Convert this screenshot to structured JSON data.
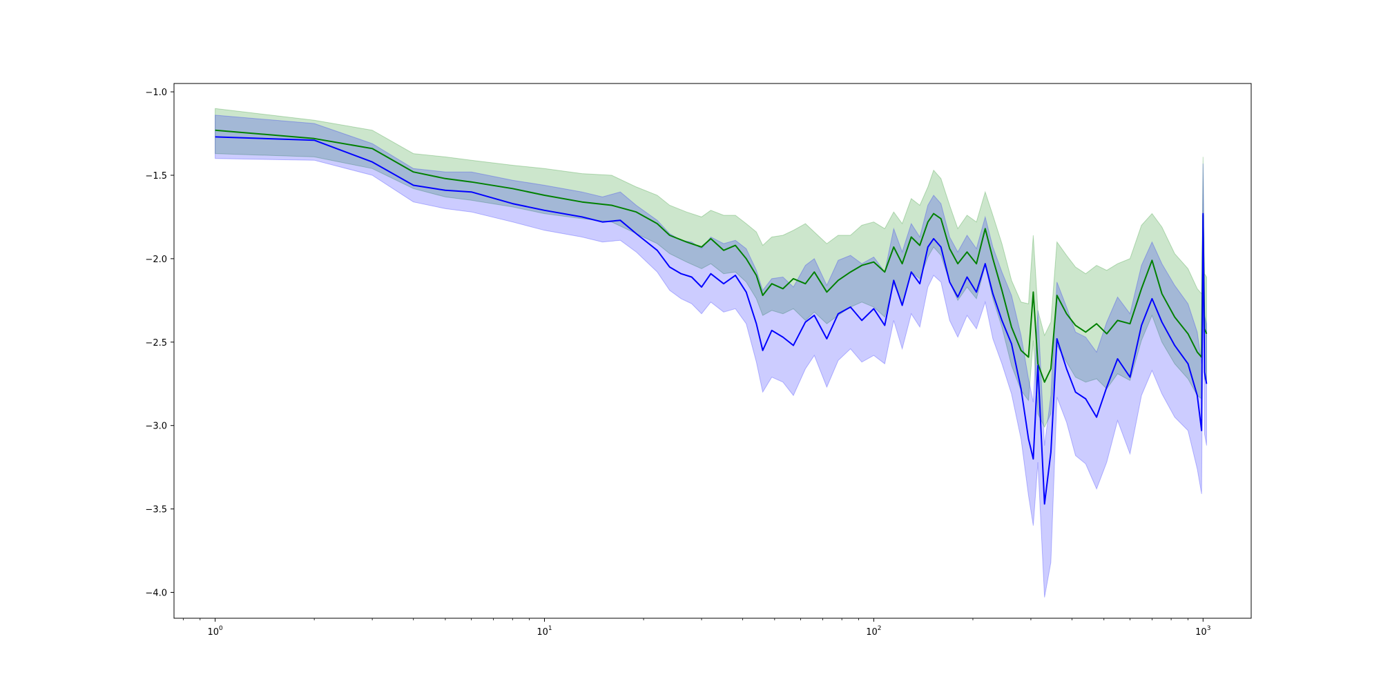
{
  "chart_data": {
    "type": "line",
    "title": "",
    "xlabel": "",
    "ylabel": "",
    "xscale": "log",
    "xlim": [
      0.75,
      1400
    ],
    "ylim": [
      -4.155,
      -0.95
    ],
    "grid": false,
    "legend": "none",
    "yticks": [
      -1.0,
      -1.5,
      -2.0,
      -2.5,
      -3.0,
      -3.5,
      -4.0
    ],
    "ytick_labels": [
      "−1.0",
      "−1.5",
      "−2.0",
      "−2.5",
      "−3.0",
      "−3.5",
      "−4.0"
    ],
    "xticks": [
      1,
      10,
      100,
      1000
    ],
    "xtick_labels": [
      {
        "base": "10",
        "exp": "0"
      },
      {
        "base": "10",
        "exp": "1"
      },
      {
        "base": "10",
        "exp": "2"
      },
      {
        "base": "10",
        "exp": "3"
      }
    ],
    "series": [
      {
        "color": "#008000",
        "band_color": "#008000",
        "band_opacity": 0.2,
        "points": [
          [
            1,
            -1.23,
            -1.1,
            -1.37
          ],
          [
            2,
            -1.28,
            -1.17,
            -1.39
          ],
          [
            3,
            -1.34,
            -1.23,
            -1.46
          ],
          [
            4,
            -1.48,
            -1.37,
            -1.58
          ],
          [
            5,
            -1.52,
            -1.39,
            -1.63
          ],
          [
            6,
            -1.54,
            -1.41,
            -1.65
          ],
          [
            8,
            -1.58,
            -1.44,
            -1.69
          ],
          [
            10,
            -1.62,
            -1.46,
            -1.73
          ],
          [
            13,
            -1.66,
            -1.49,
            -1.76
          ],
          [
            16,
            -1.68,
            -1.5,
            -1.78
          ],
          [
            19,
            -1.72,
            -1.57,
            -1.85
          ],
          [
            22,
            -1.79,
            -1.62,
            -1.91
          ],
          [
            24,
            -1.86,
            -1.68,
            -1.97
          ],
          [
            27,
            -1.9,
            -1.72,
            -2.02
          ],
          [
            30,
            -1.93,
            -1.75,
            -2.06
          ],
          [
            32,
            -1.88,
            -1.71,
            -2.03
          ],
          [
            35,
            -1.95,
            -1.74,
            -2.09
          ],
          [
            38,
            -1.92,
            -1.74,
            -2.08
          ],
          [
            41,
            -2.0,
            -1.79,
            -2.14
          ],
          [
            44,
            -2.1,
            -1.84,
            -2.24
          ],
          [
            46,
            -2.22,
            -1.92,
            -2.34
          ],
          [
            49,
            -2.15,
            -1.87,
            -2.31
          ],
          [
            53,
            -2.18,
            -1.86,
            -2.33
          ],
          [
            57,
            -2.12,
            -1.83,
            -2.3
          ],
          [
            62,
            -2.15,
            -1.79,
            -2.37
          ],
          [
            66,
            -2.08,
            -1.84,
            -2.32
          ],
          [
            72,
            -2.2,
            -1.91,
            -2.39
          ],
          [
            78,
            -2.13,
            -1.86,
            -2.34
          ],
          [
            85,
            -2.08,
            -1.86,
            -2.29
          ],
          [
            92,
            -2.04,
            -1.8,
            -2.26
          ],
          [
            100,
            -2.02,
            -1.78,
            -2.29
          ],
          [
            108,
            -2.08,
            -1.82,
            -2.35
          ],
          [
            115,
            -1.93,
            -1.72,
            -2.15
          ],
          [
            122,
            -2.03,
            -1.79,
            -2.27
          ],
          [
            130,
            -1.87,
            -1.64,
            -2.08
          ],
          [
            138,
            -1.92,
            -1.68,
            -2.12
          ],
          [
            146,
            -1.78,
            -1.57,
            -1.99
          ],
          [
            152,
            -1.73,
            -1.47,
            -1.93
          ],
          [
            160,
            -1.76,
            -1.52,
            -1.98
          ],
          [
            170,
            -1.94,
            -1.68,
            -2.14
          ],
          [
            180,
            -2.03,
            -1.82,
            -2.25
          ],
          [
            192,
            -1.96,
            -1.74,
            -2.17
          ],
          [
            205,
            -2.03,
            -1.78,
            -2.24
          ],
          [
            218,
            -1.82,
            -1.6,
            -2.04
          ],
          [
            230,
            -2.0,
            -1.74,
            -2.24
          ],
          [
            245,
            -2.19,
            -1.91,
            -2.41
          ],
          [
            262,
            -2.41,
            -2.13,
            -2.64
          ],
          [
            280,
            -2.55,
            -2.26,
            -2.79
          ],
          [
            295,
            -2.59,
            -2.27,
            -2.85
          ],
          [
            305,
            -2.2,
            -1.86,
            -2.49
          ],
          [
            315,
            -2.63,
            -2.31,
            -2.93
          ],
          [
            330,
            -2.74,
            -2.46,
            -3.01
          ],
          [
            345,
            -2.66,
            -2.38,
            -2.93
          ],
          [
            360,
            -2.22,
            -1.9,
            -2.52
          ],
          [
            385,
            -2.33,
            -1.98,
            -2.62
          ],
          [
            410,
            -2.4,
            -2.05,
            -2.71
          ],
          [
            440,
            -2.44,
            -2.09,
            -2.74
          ],
          [
            475,
            -2.39,
            -2.04,
            -2.72
          ],
          [
            510,
            -2.45,
            -2.07,
            -2.78
          ],
          [
            550,
            -2.37,
            -2.03,
            -2.69
          ],
          [
            600,
            -2.39,
            -2.0,
            -2.73
          ],
          [
            650,
            -2.18,
            -1.8,
            -2.49
          ],
          [
            700,
            -2.01,
            -1.73,
            -2.34
          ],
          [
            750,
            -2.21,
            -1.81,
            -2.5
          ],
          [
            820,
            -2.35,
            -1.97,
            -2.63
          ],
          [
            900,
            -2.45,
            -2.06,
            -2.72
          ],
          [
            960,
            -2.56,
            -2.18,
            -2.82
          ],
          [
            990,
            -2.59,
            -2.21,
            -2.84
          ],
          [
            1000,
            -1.74,
            -1.39,
            -2.02
          ],
          [
            1010,
            -2.42,
            -2.09,
            -2.72
          ],
          [
            1025,
            -2.45,
            -2.11,
            -2.74
          ]
        ]
      },
      {
        "color": "#0000ff",
        "band_color": "#0000ff",
        "band_opacity": 0.2,
        "points": [
          [
            1,
            -1.27,
            -1.14,
            -1.4
          ],
          [
            2,
            -1.29,
            -1.19,
            -1.41
          ],
          [
            3,
            -1.42,
            -1.31,
            -1.5
          ],
          [
            4,
            -1.56,
            -1.46,
            -1.66
          ],
          [
            5,
            -1.59,
            -1.48,
            -1.7
          ],
          [
            6,
            -1.6,
            -1.48,
            -1.72
          ],
          [
            8,
            -1.67,
            -1.53,
            -1.78
          ],
          [
            10,
            -1.71,
            -1.56,
            -1.83
          ],
          [
            13,
            -1.75,
            -1.6,
            -1.87
          ],
          [
            15,
            -1.78,
            -1.63,
            -1.9
          ],
          [
            17,
            -1.77,
            -1.6,
            -1.89
          ],
          [
            19,
            -1.85,
            -1.68,
            -1.96
          ],
          [
            22,
            -1.95,
            -1.77,
            -2.08
          ],
          [
            24,
            -2.05,
            -1.85,
            -2.19
          ],
          [
            26,
            -2.09,
            -1.89,
            -2.24
          ],
          [
            28,
            -2.11,
            -1.9,
            -2.27
          ],
          [
            30,
            -2.17,
            -1.94,
            -2.33
          ],
          [
            32,
            -2.09,
            -1.87,
            -2.26
          ],
          [
            35,
            -2.15,
            -1.91,
            -2.32
          ],
          [
            38,
            -2.1,
            -1.89,
            -2.3
          ],
          [
            41,
            -2.2,
            -1.94,
            -2.39
          ],
          [
            44,
            -2.39,
            -2.07,
            -2.62
          ],
          [
            46,
            -2.55,
            -2.19,
            -2.8
          ],
          [
            49,
            -2.43,
            -2.12,
            -2.71
          ],
          [
            53,
            -2.47,
            -2.11,
            -2.74
          ],
          [
            57,
            -2.52,
            -2.17,
            -2.82
          ],
          [
            62,
            -2.38,
            -2.04,
            -2.66
          ],
          [
            66,
            -2.34,
            -2.0,
            -2.58
          ],
          [
            72,
            -2.48,
            -2.16,
            -2.77
          ],
          [
            78,
            -2.33,
            -2.01,
            -2.61
          ],
          [
            85,
            -2.29,
            -1.98,
            -2.54
          ],
          [
            92,
            -2.37,
            -2.03,
            -2.62
          ],
          [
            100,
            -2.3,
            -1.99,
            -2.58
          ],
          [
            108,
            -2.4,
            -2.08,
            -2.63
          ],
          [
            115,
            -2.13,
            -1.82,
            -2.37
          ],
          [
            122,
            -2.28,
            -1.96,
            -2.54
          ],
          [
            130,
            -2.08,
            -1.79,
            -2.33
          ],
          [
            138,
            -2.15,
            -1.87,
            -2.41
          ],
          [
            146,
            -1.93,
            -1.68,
            -2.17
          ],
          [
            152,
            -1.88,
            -1.62,
            -2.1
          ],
          [
            160,
            -1.93,
            -1.67,
            -2.14
          ],
          [
            170,
            -2.14,
            -1.87,
            -2.37
          ],
          [
            180,
            -2.23,
            -1.96,
            -2.47
          ],
          [
            192,
            -2.11,
            -1.86,
            -2.34
          ],
          [
            205,
            -2.2,
            -1.94,
            -2.42
          ],
          [
            218,
            -2.03,
            -1.75,
            -2.26
          ],
          [
            230,
            -2.21,
            -1.93,
            -2.48
          ],
          [
            245,
            -2.37,
            -2.08,
            -2.63
          ],
          [
            262,
            -2.51,
            -2.22,
            -2.81
          ],
          [
            280,
            -2.78,
            -2.46,
            -3.08
          ],
          [
            295,
            -3.08,
            -2.72,
            -3.42
          ],
          [
            305,
            -3.2,
            -2.86,
            -3.6
          ],
          [
            315,
            -2.64,
            -2.31,
            -3.22
          ],
          [
            330,
            -3.47,
            -3.12,
            -4.03
          ],
          [
            345,
            -3.16,
            -2.82,
            -3.82
          ],
          [
            360,
            -2.48,
            -2.14,
            -2.83
          ],
          [
            385,
            -2.66,
            -2.29,
            -2.98
          ],
          [
            410,
            -2.8,
            -2.44,
            -3.18
          ],
          [
            440,
            -2.84,
            -2.47,
            -3.23
          ],
          [
            475,
            -2.95,
            -2.56,
            -3.38
          ],
          [
            510,
            -2.77,
            -2.38,
            -3.22
          ],
          [
            550,
            -2.6,
            -2.23,
            -2.97
          ],
          [
            600,
            -2.71,
            -2.33,
            -3.17
          ],
          [
            650,
            -2.4,
            -2.04,
            -2.82
          ],
          [
            700,
            -2.24,
            -1.9,
            -2.67
          ],
          [
            750,
            -2.38,
            -2.03,
            -2.81
          ],
          [
            820,
            -2.52,
            -2.16,
            -2.95
          ],
          [
            900,
            -2.63,
            -2.27,
            -3.03
          ],
          [
            960,
            -2.82,
            -2.44,
            -3.26
          ],
          [
            990,
            -3.03,
            -2.63,
            -3.41
          ],
          [
            1000,
            -1.73,
            -1.43,
            -2.08
          ],
          [
            1010,
            -2.68,
            -2.34,
            -3.05
          ],
          [
            1025,
            -2.75,
            -2.39,
            -3.12
          ]
        ]
      }
    ]
  }
}
